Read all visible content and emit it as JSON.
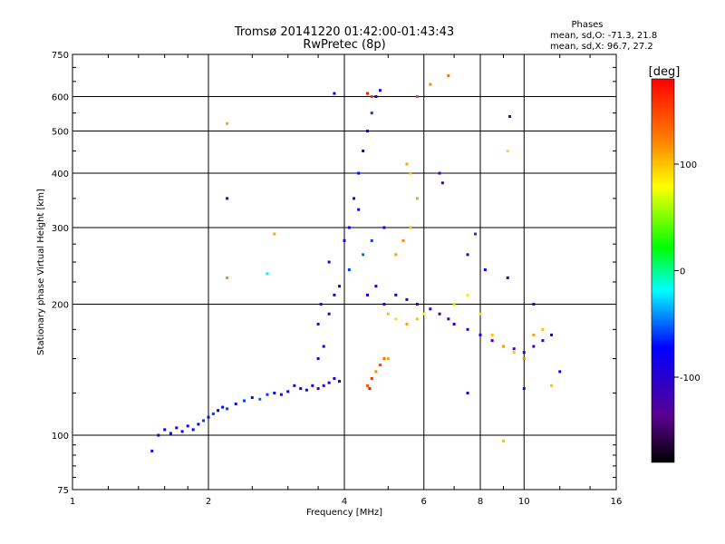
{
  "chart_data": {
    "type": "scatter",
    "title": "Tromsø 20141220 01:42:00-01:43:43",
    "subtitle": "RwPretec (8p)",
    "xlabel": "Frequency [MHz]",
    "ylabel": "Stationary phase Virtual Height [km]",
    "x_scale": "log",
    "y_scale": "log",
    "xlim": [
      1,
      16
    ],
    "ylim": [
      75,
      750
    ],
    "x_ticks": [
      1,
      2,
      4,
      6,
      8,
      10,
      16
    ],
    "x_tick_labels": [
      "1",
      "2",
      "4",
      "6",
      "8",
      "10",
      "16"
    ],
    "y_ticks": [
      75,
      100,
      200,
      300,
      400,
      500,
      600,
      750
    ],
    "y_tick_labels": [
      "75",
      "100",
      "200",
      "300",
      "400",
      "500",
      "600",
      "750"
    ],
    "grid": true,
    "colorbar": {
      "title": "[deg]",
      "range": [
        -180,
        180
      ],
      "ticks": [
        100,
        0,
        -100
      ],
      "tick_labels": [
        "100",
        "0",
        "-100"
      ],
      "colormap": "rainbow"
    },
    "stats": {
      "heading": "Phases",
      "o_line": "mean, sd,O: -71.3, 21.8",
      "x_line": "mean, sd,X:  96.7, 27.2"
    },
    "color_scale": [
      "#000000",
      "#5a0090",
      "#0000ff",
      "#00ffff",
      "#00ff00",
      "#ffff00",
      "#ff8000",
      "#ff0000"
    ],
    "series": [
      {
        "points": [
          [
            1.5,
            92,
            -100
          ],
          [
            1.55,
            100,
            -80
          ],
          [
            1.6,
            103,
            -90
          ],
          [
            1.65,
            101,
            -70
          ],
          [
            1.7,
            104,
            -100
          ],
          [
            1.75,
            102,
            -80
          ],
          [
            1.8,
            105,
            -90
          ],
          [
            1.85,
            103,
            -70
          ],
          [
            1.9,
            106,
            -80
          ],
          [
            1.95,
            108,
            -60
          ],
          [
            2.0,
            110,
            -70
          ],
          [
            2.05,
            112,
            -60
          ],
          [
            2.1,
            114,
            -80
          ],
          [
            2.15,
            116,
            -70
          ],
          [
            2.2,
            115,
            -60
          ],
          [
            2.3,
            118,
            -70
          ],
          [
            2.4,
            120,
            -60
          ],
          [
            2.5,
            122,
            -70
          ],
          [
            2.6,
            121,
            -50
          ],
          [
            2.7,
            124,
            -60
          ],
          [
            2.8,
            125,
            -80
          ],
          [
            2.9,
            124,
            -70
          ],
          [
            3.0,
            126,
            -90
          ],
          [
            3.1,
            130,
            -100
          ],
          [
            3.2,
            128,
            -80
          ],
          [
            3.3,
            127,
            -70
          ],
          [
            3.4,
            130,
            -90
          ],
          [
            3.5,
            128,
            -100
          ],
          [
            3.6,
            130,
            -110
          ],
          [
            3.7,
            132,
            -100
          ],
          [
            3.8,
            135,
            -90
          ],
          [
            3.9,
            133,
            -80
          ],
          [
            3.5,
            150,
            -100
          ],
          [
            3.6,
            160,
            -100
          ],
          [
            3.5,
            180,
            -110
          ],
          [
            3.55,
            200,
            -100
          ],
          [
            3.7,
            190,
            -90
          ],
          [
            3.8,
            210,
            -100
          ],
          [
            3.9,
            220,
            -80
          ],
          [
            3.7,
            250,
            -100
          ],
          [
            4.0,
            280,
            -90
          ],
          [
            4.1,
            300,
            -80
          ],
          [
            4.2,
            350,
            -90
          ],
          [
            4.3,
            400,
            -70
          ],
          [
            4.4,
            450,
            -80
          ],
          [
            4.5,
            500,
            -70
          ],
          [
            4.6,
            550,
            -60
          ],
          [
            4.7,
            600,
            -80
          ],
          [
            4.8,
            620,
            -90
          ],
          [
            4.3,
            330,
            -100
          ],
          [
            4.1,
            240,
            -60
          ],
          [
            4.4,
            260,
            -50
          ],
          [
            4.6,
            280,
            -60
          ],
          [
            4.9,
            300,
            -70
          ],
          [
            4.5,
            210,
            -80
          ],
          [
            4.7,
            220,
            -90
          ],
          [
            4.9,
            200,
            -100
          ],
          [
            5.2,
            210,
            -90
          ],
          [
            5.5,
            205,
            -100
          ],
          [
            5.8,
            200,
            -110
          ],
          [
            6.2,
            195,
            -100
          ],
          [
            6.5,
            190,
            -110
          ],
          [
            6.8,
            185,
            -120
          ],
          [
            7.0,
            180,
            -100
          ],
          [
            7.5,
            175,
            -110
          ],
          [
            8.0,
            170,
            -100
          ],
          [
            8.5,
            165,
            -110
          ],
          [
            9.0,
            160,
            -100
          ],
          [
            9.5,
            158,
            -110
          ],
          [
            10.0,
            155,
            -100
          ],
          [
            10.5,
            160,
            -110
          ],
          [
            11.0,
            165,
            -100
          ],
          [
            11.5,
            170,
            -90
          ],
          [
            4.5,
            130,
            140
          ],
          [
            4.6,
            135,
            160
          ],
          [
            4.7,
            140,
            120
          ],
          [
            4.8,
            145,
            150
          ],
          [
            4.9,
            150,
            130
          ],
          [
            5.0,
            150,
            110
          ],
          [
            4.55,
            128,
            170
          ],
          [
            5.0,
            190,
            100
          ],
          [
            5.2,
            185,
            90
          ],
          [
            5.5,
            180,
            110
          ],
          [
            5.8,
            185,
            100
          ],
          [
            6.0,
            190,
            80
          ],
          [
            5.2,
            260,
            110
          ],
          [
            5.4,
            280,
            120
          ],
          [
            5.6,
            300,
            100
          ],
          [
            5.8,
            350,
            110
          ],
          [
            5.6,
            400,
            100
          ],
          [
            5.5,
            420,
            110
          ],
          [
            7.0,
            200,
            60
          ],
          [
            7.5,
            210,
            70
          ],
          [
            8.0,
            190,
            90
          ],
          [
            8.5,
            170,
            100
          ],
          [
            9.0,
            160,
            110
          ],
          [
            9.5,
            155,
            100
          ],
          [
            10.0,
            150,
            120
          ],
          [
            10.5,
            170,
            110
          ],
          [
            11.0,
            175,
            100
          ],
          [
            4.6,
            600,
            160
          ],
          [
            4.5,
            610,
            170
          ],
          [
            5.8,
            600,
            150
          ],
          [
            6.2,
            640,
            120
          ],
          [
            6.8,
            670,
            130
          ],
          [
            9.3,
            540,
            -110
          ],
          [
            9.2,
            450,
            90
          ],
          [
            2.2,
            520,
            110
          ],
          [
            2.2,
            350,
            -100
          ],
          [
            2.2,
            230,
            120
          ],
          [
            2.8,
            290,
            110
          ],
          [
            2.7,
            235,
            -10
          ],
          [
            3.8,
            610,
            -90
          ],
          [
            6.5,
            400,
            -120
          ],
          [
            6.6,
            380,
            -110
          ],
          [
            7.8,
            290,
            -60
          ],
          [
            7.5,
            260,
            -100
          ],
          [
            8.2,
            240,
            -80
          ],
          [
            9.2,
            230,
            -100
          ],
          [
            10.5,
            200,
            -110
          ],
          [
            9.0,
            97,
            100
          ],
          [
            12.0,
            140,
            -90
          ],
          [
            11.5,
            130,
            100
          ],
          [
            7.5,
            125,
            -80
          ],
          [
            10.0,
            128,
            -70
          ]
        ]
      }
    ]
  }
}
